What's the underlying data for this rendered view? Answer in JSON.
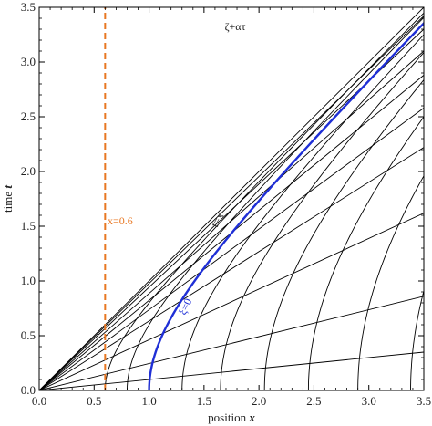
{
  "chart_data": {
    "type": "line",
    "xlabel_text": "position ",
    "xlabel_var": "x",
    "ylabel_text": "time ",
    "ylabel_var": "t",
    "xlim": [
      0,
      3.5
    ],
    "ylim": [
      0,
      3.5
    ],
    "x_ticks": [
      "0.0",
      "0.5",
      "1.0",
      "1.5",
      "2.0",
      "2.5",
      "3.0",
      "3.5"
    ],
    "y_ticks": [
      "0.0",
      "0.5",
      "1.0",
      "1.5",
      "2.0",
      "2.5",
      "3.0",
      "3.5"
    ],
    "grid": false,
    "colors": {
      "black_curves": "#000000",
      "highlight": "#1f2fd6",
      "vertical_line": "#e87722"
    },
    "annotations": {
      "top": "ζ+ατ",
      "diagonal": "t=x",
      "highlight": "ξ=0",
      "vertical": "x=0.6"
    },
    "vertical_line": {
      "x": 0.6,
      "style": "dashed"
    },
    "rays": [
      {
        "x": [
          0,
          3.5
        ],
        "y": [
          0,
          3.5
        ]
      },
      {
        "x": [
          0,
          3.5
        ],
        "y": [
          0,
          3.42
        ]
      },
      {
        "x": [
          0,
          3.5
        ],
        "y": [
          0,
          3.3
        ]
      },
      {
        "x": [
          0,
          3.5
        ],
        "y": [
          0,
          3.1
        ]
      },
      {
        "x": [
          0,
          3.5
        ],
        "y": [
          0,
          2.88
        ]
      },
      {
        "x": [
          0,
          3.5
        ],
        "y": [
          0,
          2.58
        ]
      },
      {
        "x": [
          0,
          3.5
        ],
        "y": [
          0,
          2.22
        ]
      },
      {
        "x": [
          0,
          3.5
        ],
        "y": [
          0,
          1.62
        ]
      },
      {
        "x": [
          0,
          3.5
        ],
        "y": [
          0,
          0.86
        ]
      },
      {
        "x": [
          0,
          3.5
        ],
        "y": [
          0,
          0.35
        ]
      }
    ],
    "curves": [
      {
        "name": "",
        "x0": 0.6,
        "role": "black"
      },
      {
        "name": "",
        "x0": 0.8,
        "role": "black"
      },
      {
        "name": "ξ=0",
        "x0": 1.0,
        "role": "highlight"
      },
      {
        "name": "",
        "x0": 1.3,
        "role": "black"
      },
      {
        "name": "",
        "x0": 1.65,
        "role": "black"
      },
      {
        "name": "",
        "x0": 2.05,
        "role": "black"
      },
      {
        "name": "",
        "x0": 2.45,
        "role": "black"
      },
      {
        "name": "",
        "x0": 2.9,
        "role": "black"
      },
      {
        "name": "",
        "x0": 3.38,
        "role": "black"
      }
    ]
  }
}
